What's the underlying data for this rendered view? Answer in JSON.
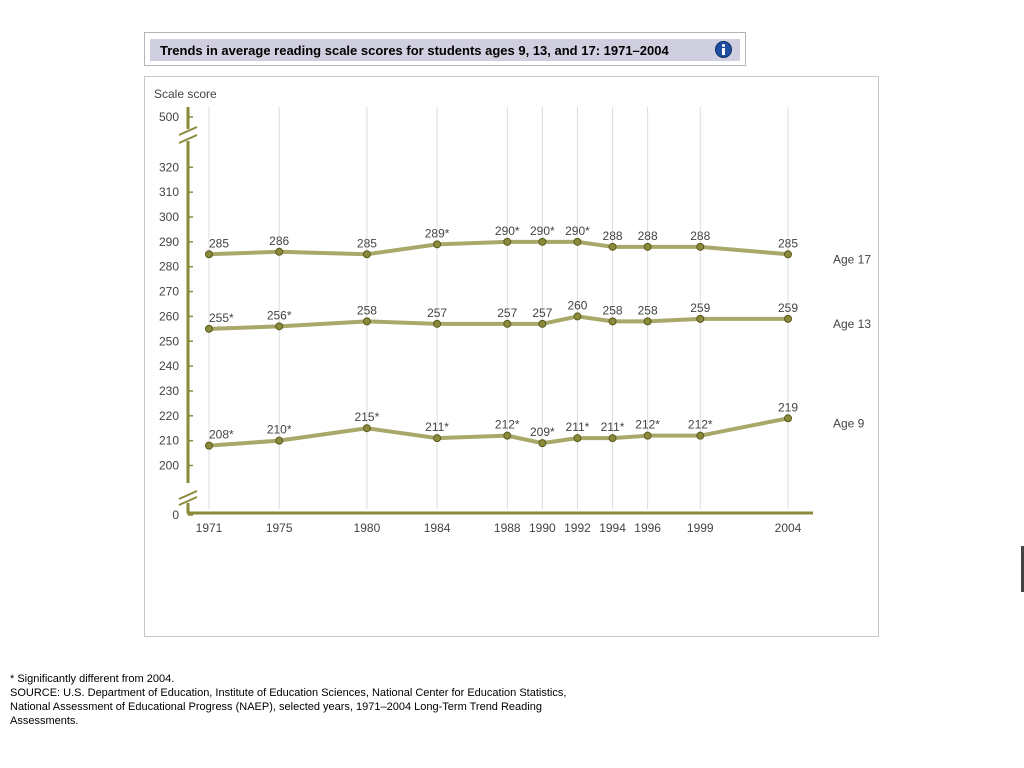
{
  "title": "Trends in average reading scale scores for students ages 9, 13, and 17: 1971–2004",
  "icons": {
    "info": "info-icon"
  },
  "colors": {
    "line": "#a8a86a",
    "marker_fill": "#8a8a3a",
    "marker_stroke": "#5a5a20",
    "axis": "#8a8a3a",
    "grid": "#dcdcdc",
    "text": "#444444",
    "title_bar": "#cfcfe0"
  },
  "chart_data": {
    "type": "line",
    "ylabel": "Scale score",
    "x": [
      "1971",
      "1975",
      "1980",
      "1984",
      "1988",
      "1990",
      "1992",
      "1994",
      "1996",
      "1999",
      "2004"
    ],
    "x_values": [
      1971,
      1975,
      1980,
      1984,
      1988,
      1990,
      1992,
      1994,
      1996,
      1999,
      2004
    ],
    "yticks": [
      0,
      200,
      210,
      220,
      230,
      240,
      250,
      260,
      270,
      280,
      290,
      300,
      310,
      320,
      500
    ],
    "ylim": [
      200,
      320
    ],
    "axis_breaks": [
      "0–200",
      "320–500"
    ],
    "grid": "vertical",
    "series": [
      {
        "name": "Age 17",
        "values": [
          285,
          286,
          285,
          289,
          290,
          290,
          290,
          288,
          288,
          288,
          285
        ],
        "labels": [
          "285",
          "286",
          "285",
          "289*",
          "290*",
          "290*",
          "290*",
          "288",
          "288",
          "288",
          "285"
        ]
      },
      {
        "name": "Age 13",
        "values": [
          255,
          256,
          258,
          257,
          257,
          257,
          260,
          258,
          258,
          259,
          259
        ],
        "labels": [
          "255*",
          "256*",
          "258",
          "257",
          "257",
          "257",
          "260",
          "258",
          "258",
          "259",
          "259"
        ]
      },
      {
        "name": "Age 9",
        "values": [
          208,
          210,
          215,
          211,
          212,
          209,
          211,
          211,
          212,
          212,
          219
        ],
        "labels": [
          "208*",
          "210*",
          "215*",
          "211*",
          "212*",
          "209*",
          "211*",
          "211*",
          "212*",
          "212*",
          "219"
        ]
      }
    ]
  },
  "footnotes": {
    "significance": "* Significantly different from 2004.",
    "source_line1": "SOURCE: U.S. Department of Education, Institute of Education Sciences, National Center for Education Statistics,",
    "source_line2": "National Assessment of Educational Progress (NAEP), selected years, 1971–2004 Long-Term Trend Reading",
    "source_line3": "Assessments."
  }
}
